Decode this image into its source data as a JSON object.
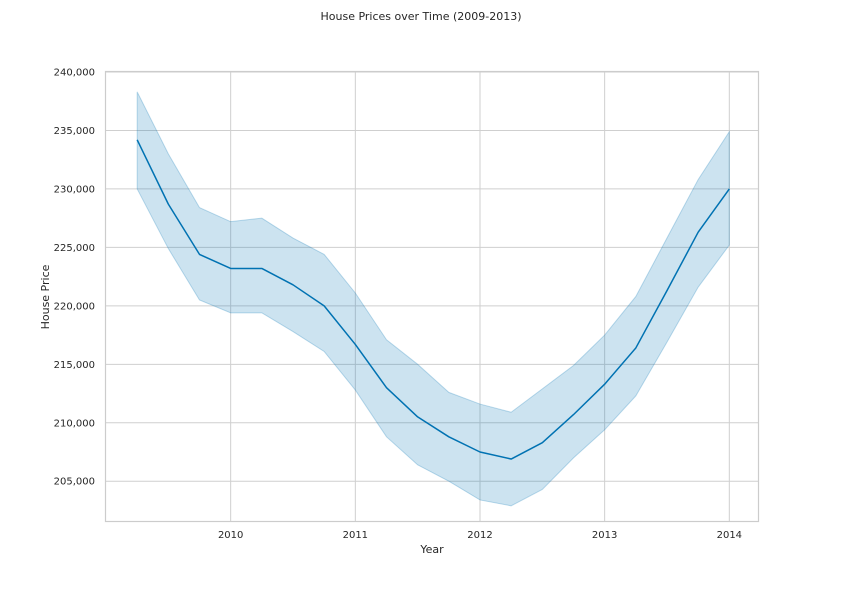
{
  "chart_data": {
    "type": "line",
    "title": "House Prices over Time (2009-2013)",
    "xlabel": "Year",
    "ylabel": "House Price",
    "xlim": [
      2009.0,
      2014.23
    ],
    "ylim": [
      201600,
      240000
    ],
    "x_ticks": [
      2010,
      2011,
      2012,
      2013,
      2014
    ],
    "x_tick_labels": [
      "2010",
      "2011",
      "2012",
      "2013",
      "2014"
    ],
    "y_ticks": [
      205000,
      210000,
      215000,
      220000,
      225000,
      230000,
      235000,
      240000
    ],
    "y_tick_labels": [
      "205,000",
      "210,000",
      "215,000",
      "220,000",
      "225,000",
      "230,000",
      "235,000",
      "240,000"
    ],
    "grid": true,
    "series": [
      {
        "x": [
          2009.25,
          2009.5,
          2009.75,
          2010.0,
          2010.25,
          2010.5,
          2010.75,
          2011.0,
          2011.25,
          2011.5,
          2011.75,
          2012.0,
          2012.25,
          2012.5,
          2012.75,
          2013.0,
          2013.25,
          2013.5,
          2013.75,
          2014.0
        ],
        "y": [
          234200,
          228700,
          224400,
          223200,
          223200,
          221800,
          220000,
          216700,
          213000,
          210500,
          208800,
          207500,
          206900,
          208300,
          210700,
          213300,
          216400,
          221300,
          226300,
          230000
        ],
        "ci_upper": [
          238300,
          233000,
          228400,
          227200,
          227500,
          225800,
          224400,
          221100,
          217100,
          215000,
          212600,
          211600,
          210900,
          212900,
          214900,
          217500,
          220800,
          225800,
          230800,
          234900
        ],
        "ci_lower": [
          230000,
          224900,
          220500,
          219400,
          219400,
          217800,
          216100,
          212800,
          208800,
          206400,
          205000,
          203400,
          202900,
          204300,
          207000,
          209400,
          212300,
          216900,
          221600,
          225200
        ],
        "color": "#0072b2",
        "band_color": "#0072b2",
        "band_opacity": 0.2
      }
    ]
  }
}
